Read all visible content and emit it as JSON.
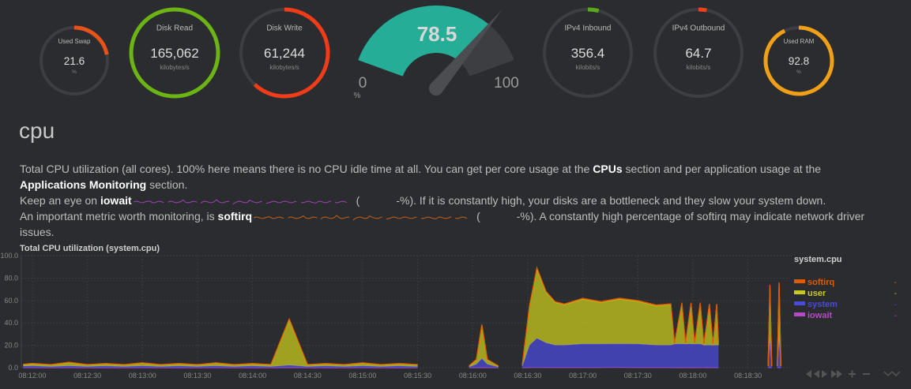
{
  "gauges": [
    {
      "title": "Used Swap",
      "value": 21.6,
      "units": "%",
      "arc": 0.22,
      "color": "#e9531a"
    },
    {
      "title": "Disk Read",
      "value": 165062,
      "value_label": "165,062",
      "units": "kilobytes/s",
      "arc": 1.0,
      "color": "#6cb414"
    },
    {
      "title": "Disk Write",
      "value": 61244,
      "value_label": "61,244",
      "units": "kilobytes/s",
      "arc": 0.62,
      "color": "#f03c18"
    },
    {
      "title": "IPv4 Inbound",
      "value": 356.4,
      "units": "kilobits/s",
      "arc": 0.04,
      "color": "#5aa81e"
    },
    {
      "title": "IPv4 Outbound",
      "value": 64.7,
      "units": "kilobits/s",
      "arc": 0.03,
      "color": "#f0421a"
    },
    {
      "title": "Used RAM",
      "value": 92.8,
      "units": "%",
      "arc": 0.93,
      "color": "#f0a016"
    }
  ],
  "big_gauge": {
    "value": 78.5,
    "min": 0,
    "max": 100,
    "units": "%",
    "color": "#26ad98"
  },
  "section": {
    "title": "cpu",
    "lines": [
      [
        {
          "text": "Total CPU utilization (all cores). 100% here means there is no CPU idle time at all. You can get per core usage at the "
        },
        {
          "text": "CPUs",
          "strong": true
        },
        {
          "text": " section and per application usage at the "
        },
        {
          "text": "Applications Monitoring",
          "strong": true
        },
        {
          "text": " section."
        }
      ],
      [
        {
          "text": "Keep an eye on "
        },
        {
          "text": "iowait",
          "strong": true
        },
        {
          "sparkline": "#9b46b0"
        },
        {
          "text": "("
        },
        {
          "text": "-%). If it is constantly high, your disks are a bottleneck and they slow your system down."
        }
      ],
      [
        {
          "text": "An important metric worth monitoring, is "
        },
        {
          "text": "softirq",
          "strong": true
        },
        {
          "sparkline": "#c4601a"
        },
        {
          "text": "("
        },
        {
          "text": "-%). A constantly high percentage of softirq may indicate network driver issues."
        }
      ]
    ]
  },
  "chart_data": {
    "type": "area",
    "title": "Total CPU utilization (system.cpu)",
    "legend_title": "system.cpu",
    "x": [
      "08:11:55",
      "08:12:00",
      "08:12:10",
      "08:12:20",
      "08:12:30",
      "08:12:40",
      "08:12:50",
      "08:13:00",
      "08:13:10",
      "08:13:20",
      "08:13:30",
      "08:13:40",
      "08:13:50",
      "08:14:00",
      "08:14:10",
      "08:14:20",
      "08:14:30",
      "08:14:40",
      "08:14:50",
      "08:15:00",
      "08:15:10",
      "08:15:20",
      "08:15:30",
      "08:15:40",
      "08:15:58",
      "08:16:02",
      "08:16:05",
      "08:16:08",
      "08:16:14",
      "08:16:20",
      "08:16:27",
      "08:16:31",
      "08:16:35",
      "08:16:40",
      "08:16:45",
      "08:16:50",
      "08:17:00",
      "08:17:10",
      "08:17:20",
      "08:17:30",
      "08:17:40",
      "08:17:48",
      "08:17:50",
      "08:17:54",
      "08:17:56",
      "08:17:59",
      "08:18:01",
      "08:18:04",
      "08:18:06",
      "08:18:09",
      "08:18:11",
      "08:18:13",
      "08:18:14",
      "08:18:16",
      "08:18:41",
      "08:18:42",
      "08:18:43",
      "08:18:45",
      "08:18:46",
      "08:18:47",
      "08:18:48"
    ],
    "series": [
      {
        "name": "softirq",
        "color": "#e05a00",
        "current": "-",
        "values": [
          0.3,
          0.3,
          0.3,
          0.3,
          0.3,
          0.3,
          0.3,
          0.3,
          0.3,
          0.3,
          0.3,
          0.3,
          0.3,
          0.3,
          0.3,
          0.4,
          0.3,
          0.3,
          0.3,
          0.3,
          0.3,
          0.3,
          0.3,
          null,
          0.2,
          0.3,
          0.5,
          0.3,
          0.2,
          null,
          0.2,
          0.6,
          1,
          0.8,
          0.7,
          0.7,
          0.8,
          0.8,
          0.8,
          0.8,
          0.8,
          0.8,
          0.3,
          0.8,
          0.3,
          0.8,
          0.3,
          0.8,
          0.3,
          0.8,
          0.3,
          0.8,
          0.3,
          null,
          0,
          1,
          0,
          null,
          0,
          1,
          0
        ]
      },
      {
        "name": "user",
        "color": "#c8c81e",
        "current": "-",
        "values": [
          1.5,
          2,
          1.5,
          3,
          1.5,
          2,
          1.5,
          2.5,
          1.5,
          2,
          1.5,
          2.5,
          1.5,
          2,
          1.5,
          41,
          1.5,
          2,
          1.5,
          2.5,
          1.5,
          2,
          1.5,
          null,
          1,
          4,
          30,
          4,
          1,
          null,
          1,
          35,
          62,
          45,
          38,
          36,
          40,
          37,
          40,
          38,
          35,
          36,
          0.5,
          36,
          0.5,
          36,
          0.5,
          36,
          0.5,
          36,
          0.5,
          36,
          0.5,
          null,
          0.5,
          48,
          0.5,
          null,
          0.5,
          50,
          0.5
        ]
      },
      {
        "name": "system",
        "color": "#4a4ad8",
        "current": "-",
        "values": [
          1.2,
          1.5,
          1,
          1.5,
          1,
          1.5,
          1,
          1.5,
          1,
          1.5,
          1,
          1.5,
          1,
          1.5,
          1,
          2,
          1,
          1.5,
          1,
          1.5,
          1,
          1.5,
          1,
          null,
          0.5,
          3,
          8,
          3,
          0.5,
          null,
          1,
          20,
          26,
          22,
          20,
          20,
          21,
          21,
          21,
          21,
          20,
          20,
          21,
          21,
          21,
          21,
          21,
          21,
          20,
          20,
          20,
          20,
          20,
          null,
          1,
          25,
          1,
          null,
          1,
          25,
          1
        ]
      },
      {
        "name": "iowait",
        "color": "#b54ac8",
        "current": "-",
        "values": [
          0.1,
          0.1,
          0,
          0.1,
          0,
          0,
          0,
          0.1,
          0,
          0,
          0,
          0.1,
          0,
          0,
          0,
          0.2,
          0,
          0,
          0,
          0.1,
          0,
          0,
          0,
          null,
          0,
          0.1,
          0.2,
          0.1,
          0,
          null,
          0,
          0.2,
          0.3,
          0.2,
          0.2,
          0.2,
          0.2,
          0.2,
          0.3,
          0.2,
          0.2,
          0.2,
          0.1,
          0.2,
          0.1,
          0.2,
          0.1,
          0.2,
          0.1,
          0.2,
          0.1,
          0.2,
          0.1,
          null,
          0,
          0.2,
          0,
          null,
          0,
          0.2,
          0
        ]
      }
    ],
    "xlim": [
      "08:11:54",
      "08:18:53"
    ],
    "xticks": [
      "08:12:00",
      "08:12:30",
      "08:13:00",
      "08:13:30",
      "08:14:00",
      "08:14:30",
      "08:15:00",
      "08:15:30",
      "08:16:00",
      "08:16:30",
      "08:17:00",
      "08:17:30",
      "08:18:00",
      "08:18:30"
    ],
    "ylim": [
      0,
      100
    ],
    "yticks": [
      {
        "value": 0,
        "label": "0.0"
      },
      {
        "value": 20,
        "label": "20.0"
      },
      {
        "value": 40,
        "label": "40.0"
      },
      {
        "value": 60,
        "label": "60.0"
      },
      {
        "value": 80,
        "label": "80.0"
      },
      {
        "value": 100,
        "label": "100.0"
      }
    ],
    "stacked": true,
    "grid": true
  }
}
